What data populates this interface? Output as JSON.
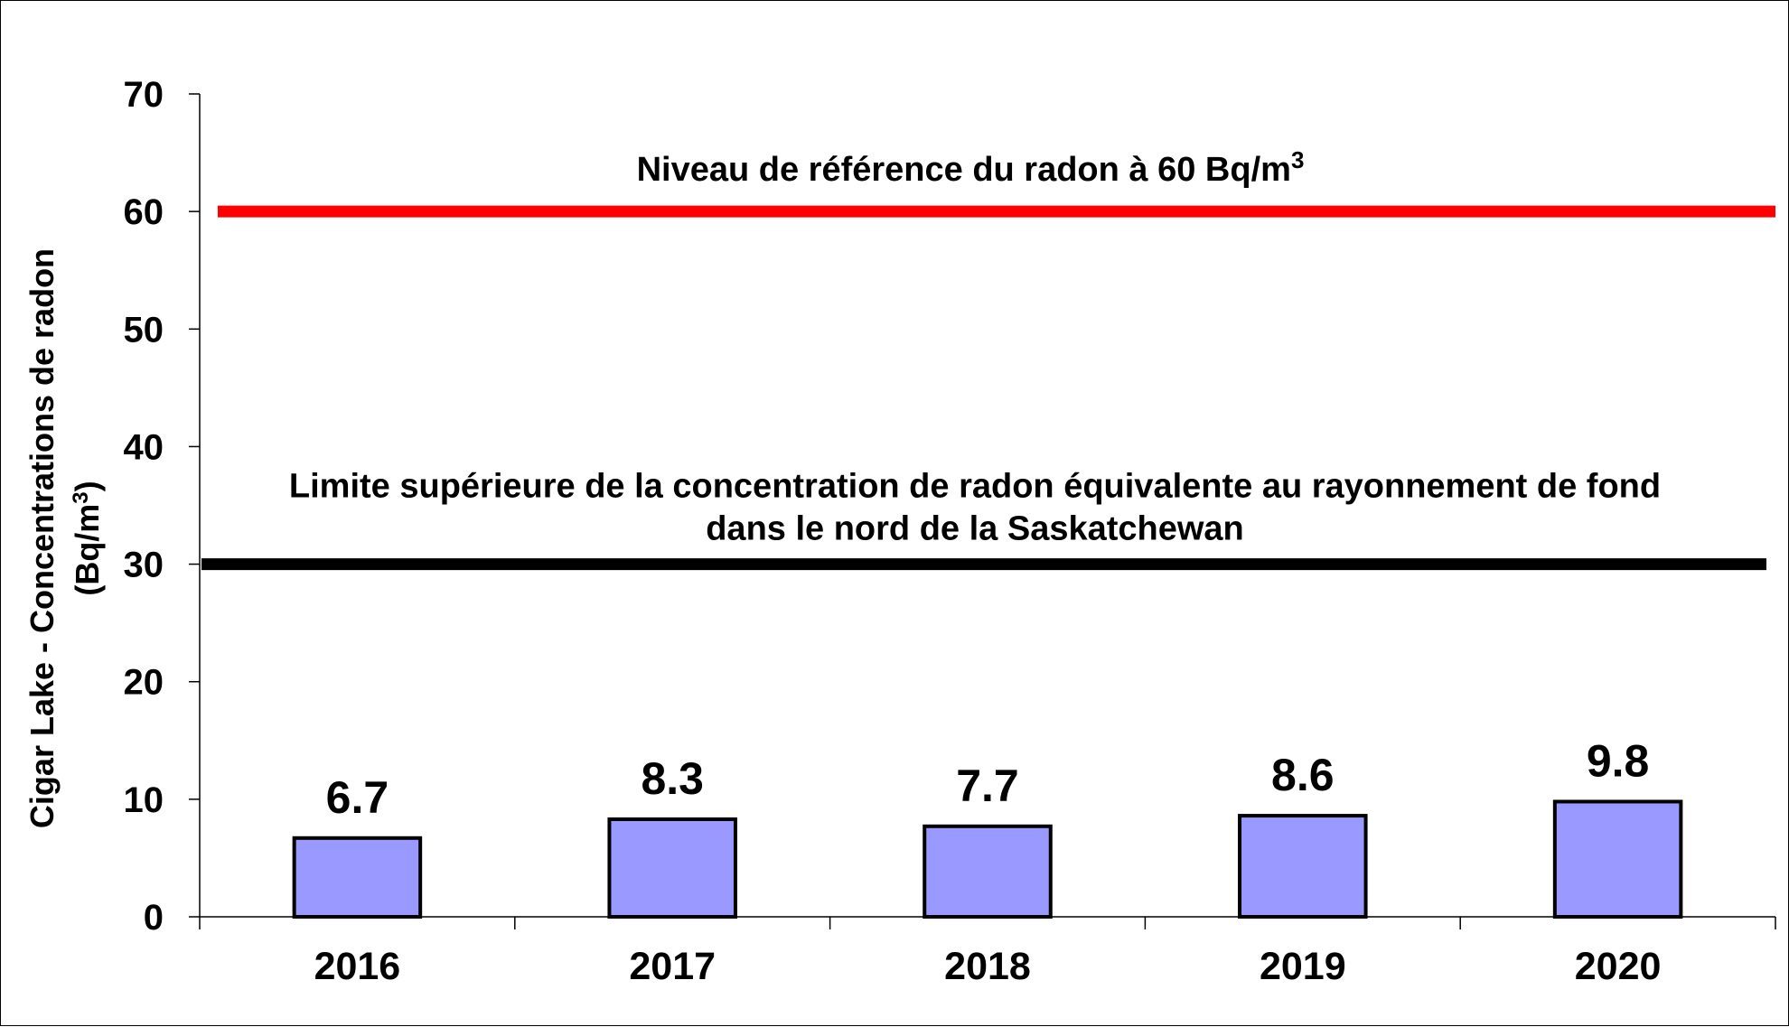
{
  "chart_data": {
    "type": "bar",
    "categories": [
      "2016",
      "2017",
      "2018",
      "2019",
      "2020"
    ],
    "values": [
      6.7,
      8.3,
      7.7,
      8.6,
      9.8
    ],
    "value_labels": [
      "6.7",
      "8.3",
      "7.7",
      "8.6",
      "9.8"
    ],
    "title": "",
    "xlabel": "",
    "ylabel_line1": "Cigar Lake - Concentrations de radon",
    "ylabel_line2_base": "(Bq/m",
    "ylabel_line2_sup": "3",
    "ylabel_line2_end": ")",
    "ylim": [
      0,
      70
    ],
    "yticks": [
      0,
      10,
      20,
      30,
      40,
      50,
      60,
      70
    ],
    "grid": false,
    "legend": "none",
    "bar_color": "#9999ff",
    "reference_lines": [
      {
        "value": 60,
        "color": "#ff0000",
        "label_base": "Niveau de référence du radon à 60 Bq/m",
        "label_sup": "3",
        "label_lines": []
      },
      {
        "value": 30,
        "color": "#000000",
        "label_base": "",
        "label_sup": "",
        "label_lines": [
          "Limite supérieure de la concentration de radon équivalente au rayonnement de fond",
          "dans le nord de la Saskatchewan"
        ]
      }
    ]
  }
}
